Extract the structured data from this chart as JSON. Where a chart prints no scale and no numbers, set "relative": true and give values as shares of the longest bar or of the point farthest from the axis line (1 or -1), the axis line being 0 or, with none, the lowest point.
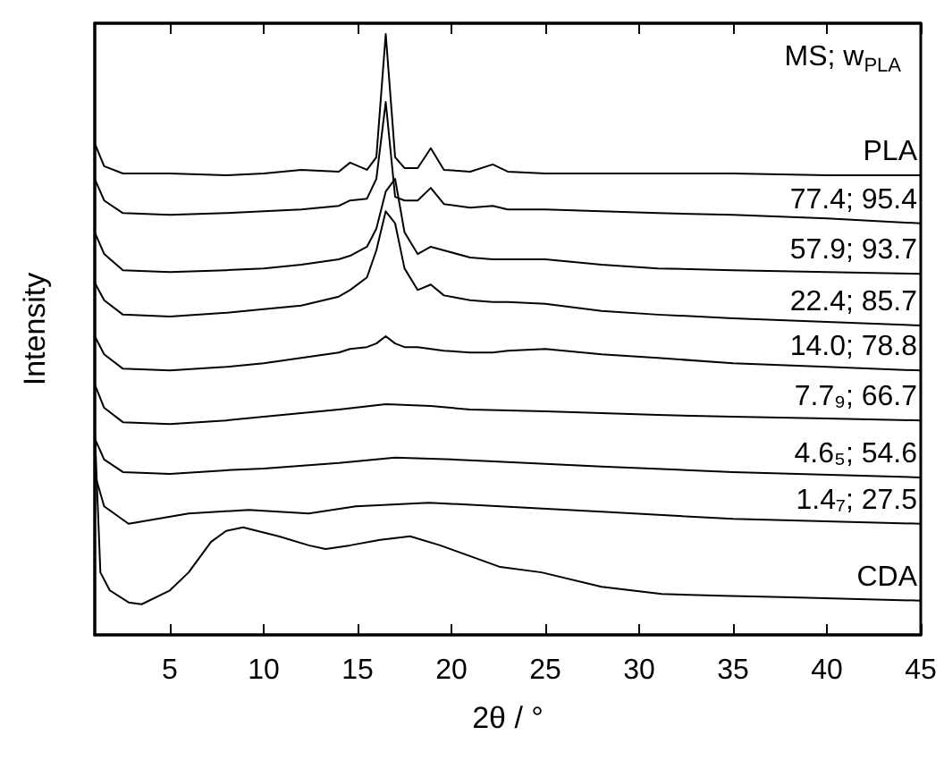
{
  "chart_data": {
    "type": "line",
    "relative": true,
    "xlabel": "2θ / °",
    "ylabel": "Intensity",
    "legend_title": "MS; w$_{PLA}$",
    "xlim": [
      1,
      45
    ],
    "xticks": [
      5,
      10,
      15,
      20,
      25,
      30,
      35,
      40,
      45
    ],
    "grid": false,
    "legend": false,
    "marker": "none",
    "line_style": "solid",
    "series": [
      {
        "name": "PLA",
        "color": "#000000",
        "x": [
          1,
          1.5,
          2.5,
          5,
          8,
          10,
          12,
          14,
          14.6,
          15.5,
          16.0,
          16.5,
          17.0,
          17.5,
          18.2,
          18.9,
          19.6,
          21,
          22.2,
          23,
          25,
          28,
          31,
          35,
          40,
          45
        ],
        "values": [
          0.818,
          0.78,
          0.768,
          0.768,
          0.765,
          0.768,
          0.774,
          0.771,
          0.786,
          0.774,
          0.795,
          1.0,
          0.795,
          0.777,
          0.777,
          0.81,
          0.774,
          0.771,
          0.783,
          0.771,
          0.768,
          0.768,
          0.768,
          0.768,
          0.765,
          0.765
        ]
      },
      {
        "name": "77.4; 95.4",
        "color": "#000000",
        "x": [
          1,
          1.5,
          2.5,
          5,
          8,
          10,
          12,
          14,
          14.6,
          15.5,
          16.0,
          16.5,
          17.0,
          17.5,
          18.2,
          18.9,
          19.6,
          21,
          22.2,
          23,
          25,
          28,
          31,
          35,
          40,
          45
        ],
        "values": [
          0.759,
          0.723,
          0.702,
          0.699,
          0.702,
          0.705,
          0.708,
          0.714,
          0.723,
          0.726,
          0.759,
          0.887,
          0.729,
          0.723,
          0.723,
          0.744,
          0.717,
          0.711,
          0.714,
          0.708,
          0.708,
          0.705,
          0.702,
          0.699,
          0.693,
          0.685
        ]
      },
      {
        "name": "57.9; 93.7",
        "color": "#000000",
        "x": [
          1,
          1.5,
          2.5,
          5,
          8,
          10,
          12,
          14,
          14.6,
          15.5,
          16.0,
          16.5,
          17.0,
          17.5,
          18.2,
          18.9,
          19.6,
          21,
          22.2,
          23,
          25,
          28,
          31,
          35,
          40,
          45
        ],
        "values": [
          0.67,
          0.634,
          0.607,
          0.604,
          0.607,
          0.61,
          0.616,
          0.625,
          0.631,
          0.646,
          0.676,
          0.738,
          0.759,
          0.67,
          0.634,
          0.646,
          0.64,
          0.628,
          0.625,
          0.625,
          0.625,
          0.616,
          0.61,
          0.607,
          0.604,
          0.601
        ]
      },
      {
        "name": "22.4; 85.7",
        "color": "#000000",
        "x": [
          1,
          1.5,
          2.5,
          5,
          8,
          10,
          12,
          14,
          14.6,
          15.5,
          16.0,
          16.5,
          17.0,
          17.5,
          18.2,
          18.9,
          19.6,
          21,
          22.2,
          23,
          25,
          28,
          31,
          35,
          40,
          45
        ],
        "values": [
          0.586,
          0.557,
          0.533,
          0.53,
          0.536,
          0.542,
          0.548,
          0.563,
          0.574,
          0.595,
          0.64,
          0.705,
          0.685,
          0.61,
          0.574,
          0.583,
          0.565,
          0.557,
          0.554,
          0.554,
          0.551,
          0.539,
          0.533,
          0.527,
          0.521,
          0.515
        ]
      },
      {
        "name": "14.0; 78.8",
        "color": "#000000",
        "x": [
          1,
          1.5,
          2.5,
          5,
          8,
          10,
          12,
          14,
          14.6,
          15.5,
          16.0,
          16.5,
          17.0,
          17.5,
          18.2,
          18.9,
          19.6,
          21,
          22.2,
          23,
          25,
          28,
          31,
          35,
          40,
          45
        ],
        "values": [
          0.497,
          0.467,
          0.443,
          0.44,
          0.446,
          0.452,
          0.461,
          0.47,
          0.476,
          0.479,
          0.485,
          0.497,
          0.485,
          0.479,
          0.479,
          0.476,
          0.473,
          0.47,
          0.47,
          0.473,
          0.476,
          0.467,
          0.461,
          0.452,
          0.446,
          0.44
        ]
      },
      {
        "name": "7.7₉; 66.7",
        "color": "#000000",
        "x": [
          1,
          1.5,
          2.5,
          5,
          8,
          10,
          12,
          14,
          16.5,
          18.9,
          21,
          25,
          31,
          35,
          40,
          45
        ],
        "values": [
          0.417,
          0.378,
          0.354,
          0.351,
          0.357,
          0.363,
          0.369,
          0.375,
          0.384,
          0.381,
          0.375,
          0.372,
          0.366,
          0.363,
          0.36,
          0.357
        ]
      },
      {
        "name": "4.6₅; 54.6",
        "color": "#000000",
        "x": [
          1,
          1.5,
          2.5,
          5,
          8,
          10,
          14,
          17,
          20,
          22,
          28,
          35,
          45
        ],
        "values": [
          0.327,
          0.292,
          0.271,
          0.268,
          0.274,
          0.277,
          0.286,
          0.295,
          0.292,
          0.289,
          0.28,
          0.271,
          0.262
        ]
      },
      {
        "name": "1.4₇; 27.5",
        "color": "#000000",
        "x": [
          1,
          1.5,
          2.8,
          6,
          9.2,
          12.4,
          14.9,
          18.8,
          22.6,
          28,
          35,
          45
        ],
        "values": [
          0.268,
          0.214,
          0.185,
          0.202,
          0.208,
          0.202,
          0.214,
          0.22,
          0.214,
          0.205,
          0.193,
          0.185
        ]
      },
      {
        "name": "CDA",
        "color": "#000000",
        "x": [
          1,
          1.3,
          1.8,
          2.8,
          3.5,
          5,
          6,
          7.2,
          8,
          8.9,
          10.8,
          12.4,
          13.3,
          14.6,
          16.2,
          17.8,
          19.4,
          22.6,
          24.8,
          28,
          31.2,
          34.4,
          37.6,
          45
        ],
        "values": [
          0.342,
          0.104,
          0.074,
          0.054,
          0.051,
          0.074,
          0.104,
          0.155,
          0.173,
          0.179,
          0.164,
          0.149,
          0.143,
          0.149,
          0.158,
          0.164,
          0.149,
          0.113,
          0.104,
          0.08,
          0.068,
          0.065,
          0.063,
          0.057
        ]
      }
    ]
  }
}
